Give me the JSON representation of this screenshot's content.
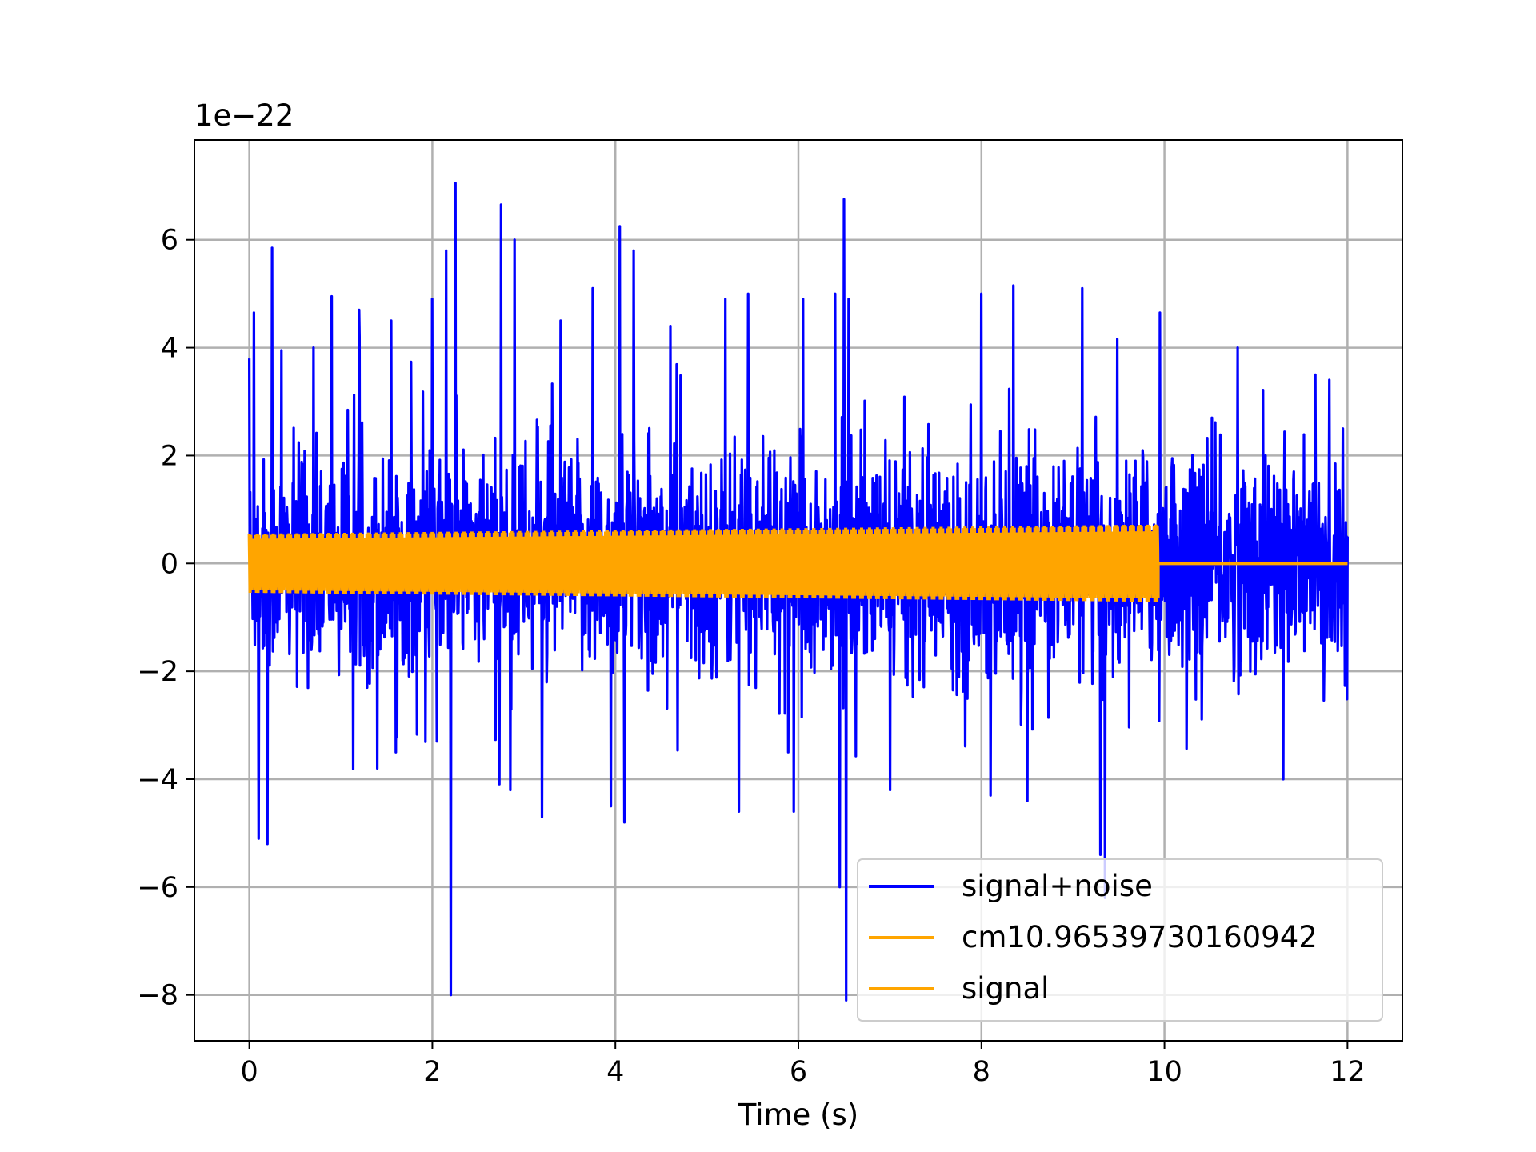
{
  "chart_data": {
    "type": "line",
    "xlabel": "Time (s)",
    "ylabel": "",
    "y_offset_label": "1e−22",
    "xlim": [
      -0.6,
      12.6
    ],
    "ylim": [
      -8.85,
      7.85
    ],
    "x_ticks": [
      0,
      2,
      4,
      6,
      8,
      10,
      12
    ],
    "x_tick_labels": [
      "0",
      "2",
      "4",
      "6",
      "8",
      "10",
      "12"
    ],
    "y_ticks": [
      -8,
      -6,
      -4,
      -2,
      0,
      2,
      4,
      6
    ],
    "y_tick_labels": [
      "−8",
      "−6",
      "−4",
      "−2",
      "0",
      "2",
      "4",
      "6"
    ],
    "grid": true,
    "legend_position": "lower right",
    "series": [
      {
        "name": "signal+noise",
        "color": "#0000ff",
        "x_range": [
          0,
          12
        ],
        "description_values": "noisy oscillation, mostly within ±2.5, spikes up to about 7 and down to about -8",
        "peaks": [
          [
            0.0,
            3.8
          ],
          [
            0.05,
            4.65
          ],
          [
            0.1,
            -5.1
          ],
          [
            0.2,
            -5.2
          ],
          [
            0.25,
            5.85
          ],
          [
            0.35,
            3.95
          ],
          [
            0.7,
            4.0
          ],
          [
            0.9,
            4.95
          ],
          [
            1.2,
            4.7
          ],
          [
            1.4,
            -3.8
          ],
          [
            1.55,
            4.5
          ],
          [
            1.6,
            -3.5
          ],
          [
            2.0,
            4.9
          ],
          [
            2.05,
            -3.3
          ],
          [
            2.15,
            5.8
          ],
          [
            2.2,
            -8.0
          ],
          [
            2.25,
            7.05
          ],
          [
            2.75,
            6.65
          ],
          [
            2.85,
            -4.2
          ],
          [
            2.9,
            6.0
          ],
          [
            3.2,
            -4.7
          ],
          [
            3.4,
            4.5
          ],
          [
            3.75,
            5.1
          ],
          [
            3.95,
            -4.5
          ],
          [
            4.05,
            6.25
          ],
          [
            4.1,
            -4.8
          ],
          [
            4.2,
            5.8
          ],
          [
            4.6,
            4.4
          ],
          [
            5.2,
            4.9
          ],
          [
            5.35,
            -4.6
          ],
          [
            5.45,
            5.0
          ],
          [
            5.95,
            -4.6
          ],
          [
            6.05,
            4.9
          ],
          [
            6.4,
            5.0
          ],
          [
            6.45,
            -6.0
          ],
          [
            6.5,
            6.75
          ],
          [
            6.52,
            -8.1
          ],
          [
            6.55,
            4.9
          ],
          [
            7.0,
            -4.2
          ],
          [
            8.0,
            5.0
          ],
          [
            8.1,
            -4.3
          ],
          [
            8.35,
            5.15
          ],
          [
            8.5,
            -4.4
          ],
          [
            9.1,
            5.1
          ],
          [
            9.3,
            -5.4
          ],
          [
            9.35,
            -6.2
          ],
          [
            9.95,
            4.65
          ],
          [
            10.8,
            4.0
          ],
          [
            11.3,
            -4.0
          ],
          [
            11.65,
            3.5
          ],
          [
            11.8,
            3.4
          ],
          [
            12.0,
            0.5
          ]
        ]
      },
      {
        "name": "cm10.96539730160942",
        "color": "#ffa500",
        "x_range": [
          0,
          12
        ],
        "description_values": "flat line at 0"
      },
      {
        "name": "signal",
        "color": "#ffa500",
        "x_range": [
          0,
          9.93
        ],
        "amplitude_start": 0.55,
        "amplitude_end": 0.72,
        "description_values": "dense sinusoid with amplitude growing from about 0.55 to 0.72, ending at about 9.93 s, then 0"
      }
    ]
  }
}
